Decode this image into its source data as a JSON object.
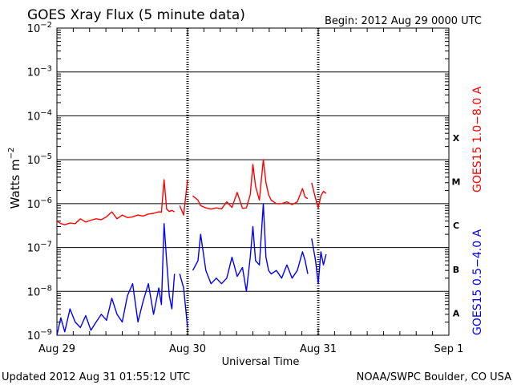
{
  "chart_data": {
    "type": "line",
    "title": "GOES Xray Flux (5 minute data)",
    "begin_text": "Begin:  2012 Aug 29 0000 UTC",
    "xlabel": "Universal Time",
    "ylabel": "Watts m",
    "ylabel_exp": "−2",
    "x_tick_labels": [
      "Aug 29",
      "Aug 30",
      "Aug 31",
      "Sep 1"
    ],
    "xlim_days": [
      0,
      3
    ],
    "ylim": [
      1e-09,
      0.01
    ],
    "y_scale": "log",
    "y_tick_labels": [
      {
        "base": "10",
        "exp": "−9"
      },
      {
        "base": "10",
        "exp": "−8"
      },
      {
        "base": "10",
        "exp": "−7"
      },
      {
        "base": "10",
        "exp": "−6"
      },
      {
        "base": "10",
        "exp": "−5"
      },
      {
        "base": "10",
        "exp": "−4"
      },
      {
        "base": "10",
        "exp": "−3"
      },
      {
        "base": "10",
        "exp": "−2"
      }
    ],
    "flare_classes": [
      "A",
      "B",
      "C",
      "M",
      "X"
    ],
    "grid": true,
    "series": [
      {
        "name": "GOES15 1.0−8.0 A",
        "color": "#ff0000",
        "x": [
          0,
          0.03,
          0.06,
          0.1,
          0.14,
          0.18,
          0.22,
          0.26,
          0.3,
          0.34,
          0.38,
          0.42,
          0.46,
          0.5,
          0.54,
          0.58,
          0.62,
          0.66,
          0.7,
          0.74,
          0.78,
          0.8,
          0.82,
          0.84,
          0.86,
          0.88,
          0.9,
          0.94,
          0.97,
          1.0,
          1.04,
          1.08,
          1.1,
          1.14,
          1.18,
          1.22,
          1.26,
          1.3,
          1.34,
          1.38,
          1.42,
          1.45,
          1.48,
          1.5,
          1.52,
          1.55,
          1.58,
          1.6,
          1.62,
          1.64,
          1.68,
          1.72,
          1.76,
          1.8,
          1.84,
          1.88,
          1.9,
          1.92,
          1.95,
          1.98,
          2.0,
          2.02,
          2.04,
          2.06
        ],
        "values": [
          4e-07,
          3.5e-07,
          3.3e-07,
          3.6e-07,
          3.5e-07,
          4.5e-07,
          3.8e-07,
          4.2e-07,
          4.5e-07,
          4.3e-07,
          5e-07,
          6.5e-07,
          4.5e-07,
          5.5e-07,
          4.8e-07,
          5e-07,
          5.5e-07,
          5.2e-07,
          5.8e-07,
          6e-07,
          6.5e-07,
          6.4e-07,
          3.5e-06,
          7.5e-07,
          6.6e-07,
          7e-07,
          6.5e-07,
          9e-07,
          5.5e-07,
          3.5e-06,
          1.5e-06,
          1.2e-06,
          9e-07,
          8e-07,
          7.5e-07,
          8e-07,
          7.6e-07,
          1.1e-06,
          8.2e-07,
          1.8e-06,
          7.8e-07,
          8e-07,
          1.6e-06,
          7.8e-06,
          2.5e-06,
          1.2e-06,
          1e-05,
          3e-06,
          1.6e-06,
          1.2e-06,
          1e-06,
          1e-06,
          1.1e-06,
          9.5e-07,
          1.1e-06,
          2.2e-06,
          1.4e-06,
          1.3e-06,
          3e-06,
          1.3e-06,
          8e-07,
          1.5e-06,
          1.9e-06,
          1.7e-06
        ],
        "gaps_after": [
          0.9,
          1.0,
          1.92
        ]
      },
      {
        "name": "GOES15 0.5−4.0 A",
        "color": "#0000ff",
        "x": [
          0,
          0.03,
          0.06,
          0.1,
          0.14,
          0.18,
          0.22,
          0.26,
          0.3,
          0.34,
          0.38,
          0.42,
          0.46,
          0.5,
          0.54,
          0.58,
          0.62,
          0.66,
          0.7,
          0.74,
          0.78,
          0.8,
          0.82,
          0.84,
          0.86,
          0.88,
          0.9,
          0.94,
          0.97,
          1.0,
          1.04,
          1.08,
          1.1,
          1.14,
          1.18,
          1.22,
          1.26,
          1.3,
          1.34,
          1.38,
          1.42,
          1.45,
          1.48,
          1.5,
          1.52,
          1.55,
          1.58,
          1.6,
          1.62,
          1.64,
          1.68,
          1.72,
          1.76,
          1.8,
          1.84,
          1.88,
          1.9,
          1.92,
          1.95,
          1.98,
          2.0,
          2.02,
          2.04,
          2.06
        ],
        "values": [
          1e-09,
          2.5e-09,
          1.2e-09,
          4e-09,
          2e-09,
          1.5e-09,
          2.8e-09,
          1.3e-09,
          2e-09,
          3e-09,
          2.2e-09,
          7e-09,
          3e-09,
          2e-09,
          8e-09,
          1.5e-08,
          2e-09,
          6e-09,
          1.5e-08,
          3e-09,
          1.2e-08,
          5e-09,
          3.5e-07,
          5e-08,
          8e-09,
          4e-09,
          2.5e-08,
          2.5e-08,
          1.2e-08,
          1.5e-09,
          3e-08,
          5e-08,
          2e-07,
          3e-08,
          1.5e-08,
          2e-08,
          1.5e-08,
          2e-08,
          6e-08,
          2.2e-08,
          3.5e-08,
          1e-08,
          6e-08,
          3e-07,
          5e-08,
          4e-08,
          1e-06,
          6e-08,
          3e-08,
          2.5e-08,
          3e-08,
          2e-08,
          4e-08,
          2e-08,
          3e-08,
          8e-08,
          5e-08,
          2.5e-08,
          1.6e-07,
          5e-08,
          1.5e-08,
          8e-08,
          4e-08,
          7e-08
        ],
        "gaps_after": [
          0.9,
          1.0,
          1.92
        ]
      }
    ]
  },
  "footer": {
    "updated": "Updated 2012 Aug 31 01:55:12 UTC",
    "source": "NOAA/SWPC Boulder, CO USA"
  }
}
